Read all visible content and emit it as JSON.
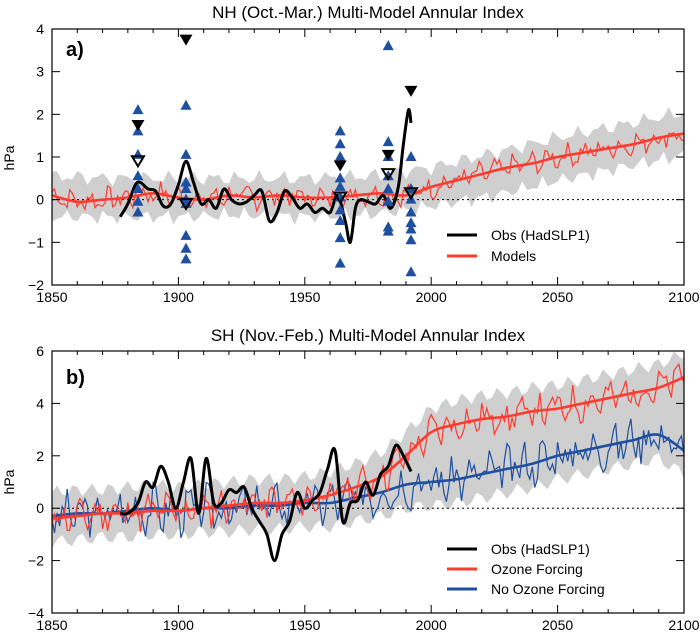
{
  "chart_data": [
    {
      "type": "line",
      "panel_label": "a)",
      "title": "NH (Oct.-Mar.) Multi-Model Annular Index",
      "ylabel": "hPa",
      "xlabel": "",
      "xlim": [
        1850,
        2100
      ],
      "ylim": [
        -2,
        4
      ],
      "xticks": [
        "1850",
        "1900",
        "1950",
        "2000",
        "2050",
        "2100"
      ],
      "yticks": [
        "-2",
        "-1",
        "0",
        "1",
        "2",
        "3",
        "4"
      ],
      "zero_line": "dotted",
      "legend": {
        "position": "lower-right",
        "entries": [
          "Obs (HadSLP1)",
          "Models"
        ]
      },
      "colors": {
        "obs": "#000000",
        "models": "#ff3b2f",
        "band": "#cfcfcf",
        "triangle": "#1f4fa0"
      },
      "series": [
        {
          "name": "Obs (HadSLP1)",
          "color": "#000000",
          "x": [
            1877,
            1880,
            1883,
            1885,
            1888,
            1891,
            1894,
            1897,
            1900,
            1903,
            1906,
            1909,
            1912,
            1915,
            1918,
            1921,
            1924,
            1927,
            1930,
            1933,
            1936,
            1939,
            1942,
            1945,
            1948,
            1951,
            1954,
            1957,
            1960,
            1963,
            1966,
            1968,
            1970,
            1972,
            1975,
            1978,
            1981,
            1984,
            1987,
            1989,
            1991,
            1992
          ],
          "values": [
            -0.4,
            -0.1,
            0.35,
            0.4,
            0.25,
            0.2,
            -0.15,
            -0.1,
            0.35,
            0.9,
            0.4,
            -0.1,
            0.0,
            -0.2,
            0.25,
            0.0,
            -0.1,
            -0.05,
            0.1,
            0.2,
            -0.5,
            -0.3,
            0.2,
            0.05,
            -0.2,
            -0.1,
            -0.3,
            -0.2,
            -0.3,
            0.1,
            -0.5,
            -1.0,
            -0.2,
            0.0,
            -0.05,
            -0.1,
            0.1,
            -0.2,
            0.3,
            1.3,
            2.1,
            1.8
          ]
        },
        {
          "name": "Models (ensemble mean)",
          "color": "#ff3b2f",
          "x": [
            1850,
            1860,
            1870,
            1880,
            1890,
            1900,
            1910,
            1920,
            1930,
            1940,
            1950,
            1960,
            1970,
            1980,
            1990,
            2000,
            2010,
            2020,
            2030,
            2040,
            2050,
            2060,
            2070,
            2080,
            2090,
            2100
          ],
          "values": [
            0.1,
            -0.05,
            0.0,
            0.05,
            0.15,
            0.05,
            0.0,
            0.1,
            0.05,
            0.1,
            0.05,
            0.05,
            0.1,
            0.15,
            0.1,
            0.3,
            0.45,
            0.6,
            0.75,
            0.85,
            1.0,
            1.1,
            1.2,
            1.3,
            1.45,
            1.55
          ]
        },
        {
          "name": "Models (spread, upper)",
          "color": "#cfcfcf",
          "x": [
            1850,
            1875,
            1900,
            1925,
            1950,
            1975,
            2000,
            2025,
            2050,
            2075,
            2100
          ],
          "values": [
            0.55,
            0.5,
            0.5,
            0.5,
            0.5,
            0.55,
            0.75,
            1.1,
            1.45,
            1.75,
            2.05
          ]
        },
        {
          "name": "Models (spread, lower)",
          "color": "#cfcfcf",
          "x": [
            1850,
            1875,
            1900,
            1925,
            1950,
            1975,
            2000,
            2025,
            2050,
            2075,
            2100
          ],
          "values": [
            -0.4,
            -0.4,
            -0.4,
            -0.35,
            -0.4,
            -0.35,
            -0.15,
            0.1,
            0.45,
            0.75,
            1.05
          ]
        }
      ],
      "markers": {
        "years": [
          1884,
          1903,
          1964,
          1983,
          1992
        ],
        "blue_up_triangles": [
          [
            2.1,
            1.6,
            1.05,
            0.55,
            0.25,
            -0.05,
            -0.3
          ],
          [
            2.2,
            1.05,
            0.4,
            0.25,
            0.0,
            -0.1,
            -0.85,
            -1.15,
            -1.4
          ],
          [
            1.6,
            1.3,
            1.0,
            0.5,
            0.3,
            0.05,
            -0.25,
            -0.5,
            -0.9,
            -1.5
          ],
          [
            3.6,
            1.35,
            1.0,
            0.55,
            0.25,
            -0.05,
            -0.65,
            -0.75
          ],
          [
            1.0,
            0.25,
            0.0,
            -0.3,
            -0.55,
            -0.7,
            -0.95,
            -1.7
          ]
        ],
        "black_filled_down": [
          1.75,
          3.75,
          0.8,
          1.05,
          2.55
        ],
        "black_open_down": [
          0.9,
          -0.1,
          0.05,
          0.6,
          0.15
        ]
      }
    },
    {
      "type": "line",
      "panel_label": "b)",
      "title": "SH (Nov.-Feb.) Multi-Model Annular Index",
      "ylabel": "hPa",
      "xlabel": "",
      "xlim": [
        1850,
        2100
      ],
      "ylim": [
        -4,
        6
      ],
      "xticks": [
        "1850",
        "1900",
        "1950",
        "2000",
        "2050",
        "2100"
      ],
      "yticks": [
        "-4",
        "-2",
        "0",
        "2",
        "4",
        "6"
      ],
      "zero_line": "dotted",
      "legend": {
        "position": "lower-right",
        "entries": [
          "Obs (HadSLP1)",
          "Ozone Forcing",
          "No Ozone Forcing"
        ]
      },
      "colors": {
        "obs": "#000000",
        "ozone": "#ff3b2f",
        "no_ozone": "#1f4fa0",
        "band": "#cfcfcf"
      },
      "series": [
        {
          "name": "Obs (HadSLP1)",
          "color": "#000000",
          "x": [
            1877,
            1880,
            1884,
            1887,
            1890,
            1893,
            1896,
            1899,
            1902,
            1905,
            1908,
            1911,
            1914,
            1917,
            1920,
            1923,
            1926,
            1929,
            1932,
            1935,
            1938,
            1941,
            1944,
            1947,
            1950,
            1953,
            1956,
            1959,
            1962,
            1965,
            1968,
            1971,
            1974,
            1977,
            1980,
            1983,
            1986,
            1989,
            1992
          ],
          "values": [
            -0.2,
            -0.2,
            0.2,
            1.0,
            0.8,
            1.6,
            1.0,
            0.0,
            1.0,
            1.9,
            -0.2,
            1.9,
            0.2,
            0.2,
            0.7,
            0.6,
            0.8,
            0.0,
            -0.5,
            -1.0,
            -2.0,
            -1.0,
            -0.5,
            0.6,
            0.0,
            0.3,
            0.6,
            1.5,
            2.2,
            -0.5,
            0.2,
            0.3,
            1.0,
            0.5,
            1.3,
            1.6,
            2.4,
            2.0,
            1.4
          ]
        },
        {
          "name": "Ozone Forcing",
          "color": "#ff3b2f",
          "x": [
            1850,
            1860,
            1870,
            1880,
            1890,
            1900,
            1910,
            1920,
            1930,
            1940,
            1950,
            1960,
            1970,
            1980,
            1990,
            2000,
            2010,
            2020,
            2030,
            2040,
            2050,
            2060,
            2070,
            2080,
            2090,
            2100
          ],
          "values": [
            -0.4,
            -0.3,
            -0.2,
            -0.2,
            -0.1,
            -0.1,
            0.0,
            0.1,
            0.2,
            0.2,
            0.3,
            0.5,
            0.8,
            1.2,
            2.0,
            2.9,
            3.2,
            3.4,
            3.5,
            3.7,
            3.8,
            4.0,
            4.2,
            4.4,
            4.6,
            5.0
          ]
        },
        {
          "name": "No Ozone Forcing",
          "color": "#1f4fa0",
          "x": [
            1850,
            1860,
            1870,
            1880,
            1890,
            1900,
            1910,
            1920,
            1930,
            1940,
            1950,
            1960,
            1970,
            1980,
            1990,
            2000,
            2010,
            2020,
            2030,
            2040,
            2050,
            2060,
            2070,
            2080,
            2090,
            2100
          ],
          "values": [
            -0.3,
            -0.2,
            -0.2,
            -0.1,
            0.0,
            -0.1,
            0.0,
            0.0,
            0.1,
            0.1,
            0.2,
            0.2,
            0.4,
            0.6,
            0.9,
            1.0,
            1.1,
            1.3,
            1.5,
            1.7,
            2.0,
            2.2,
            2.4,
            2.6,
            2.8,
            2.2
          ]
        }
      ]
    }
  ]
}
